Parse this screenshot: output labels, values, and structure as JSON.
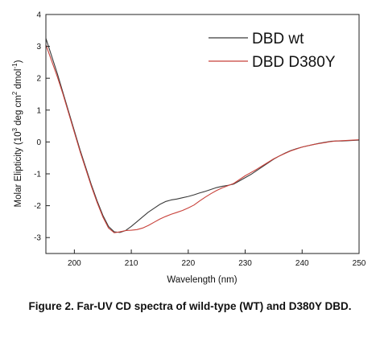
{
  "chart_data": {
    "type": "line",
    "xlabel": "Wavelength (nm)",
    "ylabel": {
      "prefix": "Molar Elipticity (10",
      "exp1": "3",
      "mid": " deg cm",
      "exp2": "2",
      "mid2": " dmol",
      "exp3": "-1",
      "suffix": ")"
    },
    "xlim": [
      195,
      250
    ],
    "ylim": [
      -3.5,
      4
    ],
    "xticks": [
      "200",
      "210",
      "220",
      "230",
      "240",
      "250"
    ],
    "yticks": [
      "-3",
      "-2",
      "-1",
      "0",
      "1",
      "2",
      "3",
      "4"
    ],
    "legend_position": "top-right",
    "series": [
      {
        "name": "DBD wt",
        "color": "#3a3a3a",
        "x": [
          195,
          196,
          197,
          198,
          199,
          200,
          201,
          202,
          203,
          204,
          205,
          206,
          207,
          208,
          209,
          210,
          211,
          212,
          213,
          214,
          215,
          216,
          217,
          218,
          219,
          220,
          221,
          222,
          223,
          224,
          225,
          226,
          227,
          228,
          229,
          230,
          231,
          232,
          233,
          234,
          235,
          236,
          237,
          238,
          239,
          240,
          241,
          242,
          243,
          244,
          245,
          246,
          247,
          248,
          249,
          250
        ],
        "y": [
          3.25,
          2.7,
          2.15,
          1.55,
          0.95,
          0.35,
          -0.25,
          -0.8,
          -1.35,
          -1.85,
          -2.3,
          -2.65,
          -2.82,
          -2.84,
          -2.78,
          -2.65,
          -2.5,
          -2.35,
          -2.2,
          -2.08,
          -1.96,
          -1.87,
          -1.82,
          -1.79,
          -1.75,
          -1.71,
          -1.66,
          -1.6,
          -1.55,
          -1.49,
          -1.43,
          -1.39,
          -1.36,
          -1.32,
          -1.22,
          -1.12,
          -1.02,
          -0.9,
          -0.78,
          -0.66,
          -0.54,
          -0.44,
          -0.35,
          -0.27,
          -0.21,
          -0.16,
          -0.12,
          -0.08,
          -0.04,
          -0.01,
          0.02,
          0.03,
          0.03,
          0.04,
          0.05,
          0.06
        ]
      },
      {
        "name": "DBD D380Y",
        "color": "#c8413a",
        "x": [
          195,
          196,
          197,
          198,
          199,
          200,
          201,
          202,
          203,
          204,
          205,
          206,
          207,
          208,
          209,
          210,
          211,
          212,
          213,
          214,
          215,
          216,
          217,
          218,
          219,
          220,
          221,
          222,
          223,
          224,
          225,
          226,
          227,
          228,
          229,
          230,
          231,
          232,
          233,
          234,
          235,
          236,
          237,
          238,
          239,
          240,
          241,
          242,
          243,
          244,
          245,
          246,
          247,
          248,
          249,
          250
        ],
        "y": [
          3.05,
          2.55,
          2.05,
          1.5,
          0.9,
          0.3,
          -0.3,
          -0.85,
          -1.4,
          -1.9,
          -2.35,
          -2.7,
          -2.85,
          -2.82,
          -2.78,
          -2.77,
          -2.75,
          -2.7,
          -2.62,
          -2.52,
          -2.42,
          -2.34,
          -2.27,
          -2.21,
          -2.15,
          -2.07,
          -1.98,
          -1.85,
          -1.73,
          -1.62,
          -1.52,
          -1.44,
          -1.37,
          -1.3,
          -1.18,
          -1.06,
          -0.96,
          -0.86,
          -0.75,
          -0.64,
          -0.53,
          -0.44,
          -0.36,
          -0.28,
          -0.22,
          -0.16,
          -0.12,
          -0.08,
          -0.05,
          -0.02,
          0.01,
          0.03,
          0.04,
          0.05,
          0.06,
          0.07
        ]
      }
    ]
  },
  "caption": "Figure 2. Far-UV CD spectra of wild-type (WT) and D380Y DBD."
}
